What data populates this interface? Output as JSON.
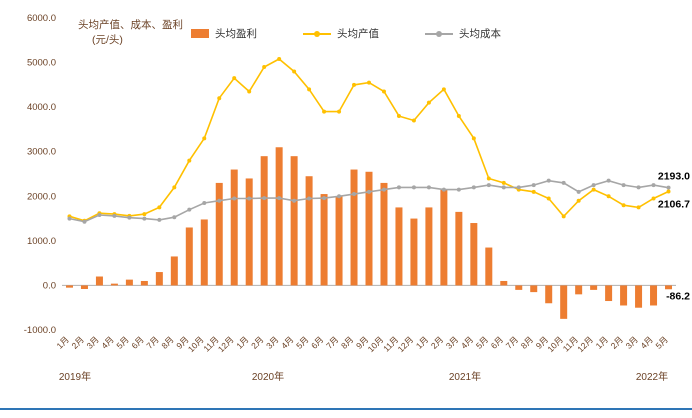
{
  "page": {
    "background": "#ffffff",
    "bottom_rule_color": "#2E75B6"
  },
  "chart_data": {
    "type": "bar+line",
    "title": "",
    "ylabel_line1": "头均产值、成本、盈利",
    "ylabel_line2": "(元/头)",
    "ylim": [
      -1000,
      6000
    ],
    "ytick_step": 1000,
    "grid": false,
    "legend_position": "top",
    "axis_text_color": "#6b4226",
    "categories": [
      "1月",
      "2月",
      "3月",
      "4月",
      "5月",
      "6月",
      "7月",
      "8月",
      "9月",
      "10月",
      "11月",
      "12月",
      "1月",
      "2月",
      "3月",
      "4月",
      "5月",
      "6月",
      "7月",
      "8月",
      "9月",
      "10月",
      "11月",
      "12月",
      "1月",
      "2月",
      "3月",
      "4月",
      "5月",
      "6月",
      "7月",
      "8月",
      "9月",
      "10月",
      "11月",
      "12月",
      "1月",
      "2月",
      "3月",
      "4月",
      "5月"
    ],
    "years": [
      "2019年",
      "2020年",
      "2021年",
      "2022年"
    ],
    "series": [
      {
        "name": "头均盈利",
        "type": "bar",
        "color": "#ED7D31",
        "values": [
          -50,
          -80,
          200,
          40,
          130,
          100,
          300,
          650,
          1300,
          1480,
          2300,
          2600,
          2400,
          2900,
          3100,
          2900,
          2450,
          2050,
          2000,
          2600,
          2550,
          2300,
          1750,
          1500,
          1750,
          2150,
          1650,
          1400,
          850,
          100,
          -100,
          -150,
          -400,
          -750,
          -200,
          -100,
          -350,
          -450,
          -500,
          -450,
          -86.2
        ]
      },
      {
        "name": "头均产值",
        "type": "line",
        "color": "#FFC000",
        "values": [
          1550,
          1450,
          1620,
          1600,
          1560,
          1600,
          1750,
          2200,
          2800,
          3300,
          4200,
          4650,
          4350,
          4900,
          5080,
          4800,
          4400,
          3900,
          3900,
          4500,
          4550,
          4350,
          3800,
          3700,
          4100,
          4400,
          3800,
          3300,
          2400,
          2300,
          2150,
          2100,
          1950,
          1550,
          1900,
          2150,
          2000,
          1800,
          1750,
          1950,
          2106.7
        ]
      },
      {
        "name": "头均成本",
        "type": "line",
        "color": "#A6A6A6",
        "values": [
          1500,
          1430,
          1580,
          1560,
          1520,
          1500,
          1470,
          1530,
          1700,
          1850,
          1900,
          1950,
          1950,
          1960,
          1960,
          1900,
          1950,
          1960,
          2000,
          2050,
          2100,
          2150,
          2200,
          2200,
          2200,
          2150,
          2150,
          2200,
          2250,
          2200,
          2200,
          2250,
          2350,
          2300,
          2100,
          2250,
          2350,
          2250,
          2200,
          2250,
          2193
        ]
      }
    ],
    "end_labels": [
      "2193.0",
      "2106.7",
      "-86.2"
    ]
  }
}
